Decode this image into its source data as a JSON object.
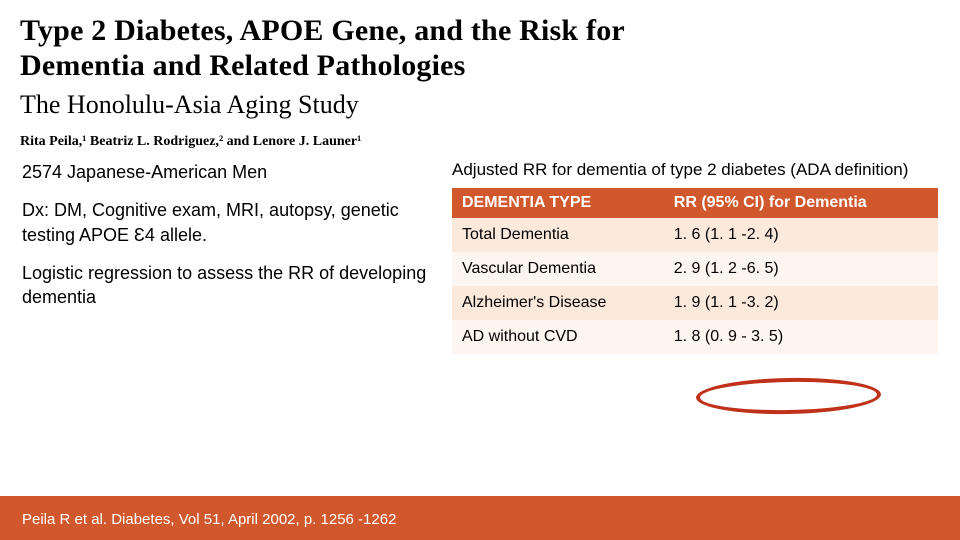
{
  "title": {
    "line1": "Type 2 Diabetes, APOE Gene, and the Risk for",
    "line2": "Dementia and Related Pathologies",
    "subtitle": "The Honolulu-Asia Aging Study",
    "authors_html": "Rita Peila,¹ Beatriz L. Rodriguez,² and Lenore J. Launer¹"
  },
  "left": {
    "p1": "2574 Japanese-American Men",
    "p2": "Dx: DM, Cognitive exam, MRI, autopsy, genetic testing APOE Ɛ4 allele.",
    "p3": "Logistic regression to assess the RR of developing dementia"
  },
  "table": {
    "caption": "Adjusted RR for dementia of type 2 diabetes (ADA definition)",
    "header": {
      "col1": "DEMENTIA TYPE",
      "col2": "RR (95% CI) for Dementia"
    },
    "rows": [
      {
        "c1": "Total Dementia",
        "c2": "1. 6 (1. 1 -2. 4)"
      },
      {
        "c1": "Vascular Dementia",
        "c2": "2. 9 (1. 2 -6. 5)"
      },
      {
        "c1": "Alzheimer's Disease",
        "c2": "1. 9 (1. 1 -3. 2)"
      },
      {
        "c1": "AD without CVD",
        "c2": "1. 8 (0. 9 - 3. 5)"
      }
    ],
    "header_bg": "#d0582c",
    "header_fg": "#ffffff",
    "row_odd_bg": "#fbe9dc",
    "row_even_bg": "#fdf5ef",
    "highlight_color": "#c0311a"
  },
  "citation": "Peila R et al. Diabetes, Vol 51, April 2002, p. 1256 -1262",
  "footer_bg": "#d0582c"
}
